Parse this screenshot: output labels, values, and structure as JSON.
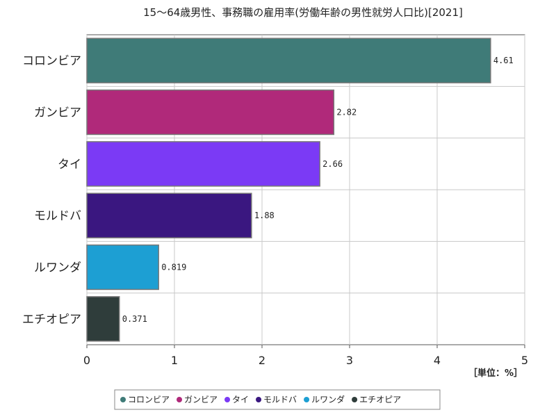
{
  "chart_data": {
    "type": "bar",
    "orientation": "horizontal",
    "title": "15～64歳男性、事務職の雇用率(労働年齢の男性就労人口比)[2021]",
    "unit": "［単位：%］",
    "categories": [
      "コロンビア",
      "ガンビア",
      "タイ",
      "モルドバ",
      "ルワンダ",
      "エチオピア"
    ],
    "values": [
      4.61,
      2.82,
      2.66,
      1.88,
      0.819,
      0.371
    ],
    "value_labels": [
      "4.61",
      "2.82",
      "2.66",
      "1.88",
      "0.819",
      "0.371"
    ],
    "colors": [
      "#3f7b78",
      "#b0297a",
      "#7b3af5",
      "#3a1780",
      "#1d9fd3",
      "#2f3d3b"
    ],
    "xlim": [
      0,
      5
    ],
    "xticks": [
      0,
      1,
      2,
      3,
      4,
      5
    ],
    "grid": true,
    "legend_position": "bottom"
  }
}
